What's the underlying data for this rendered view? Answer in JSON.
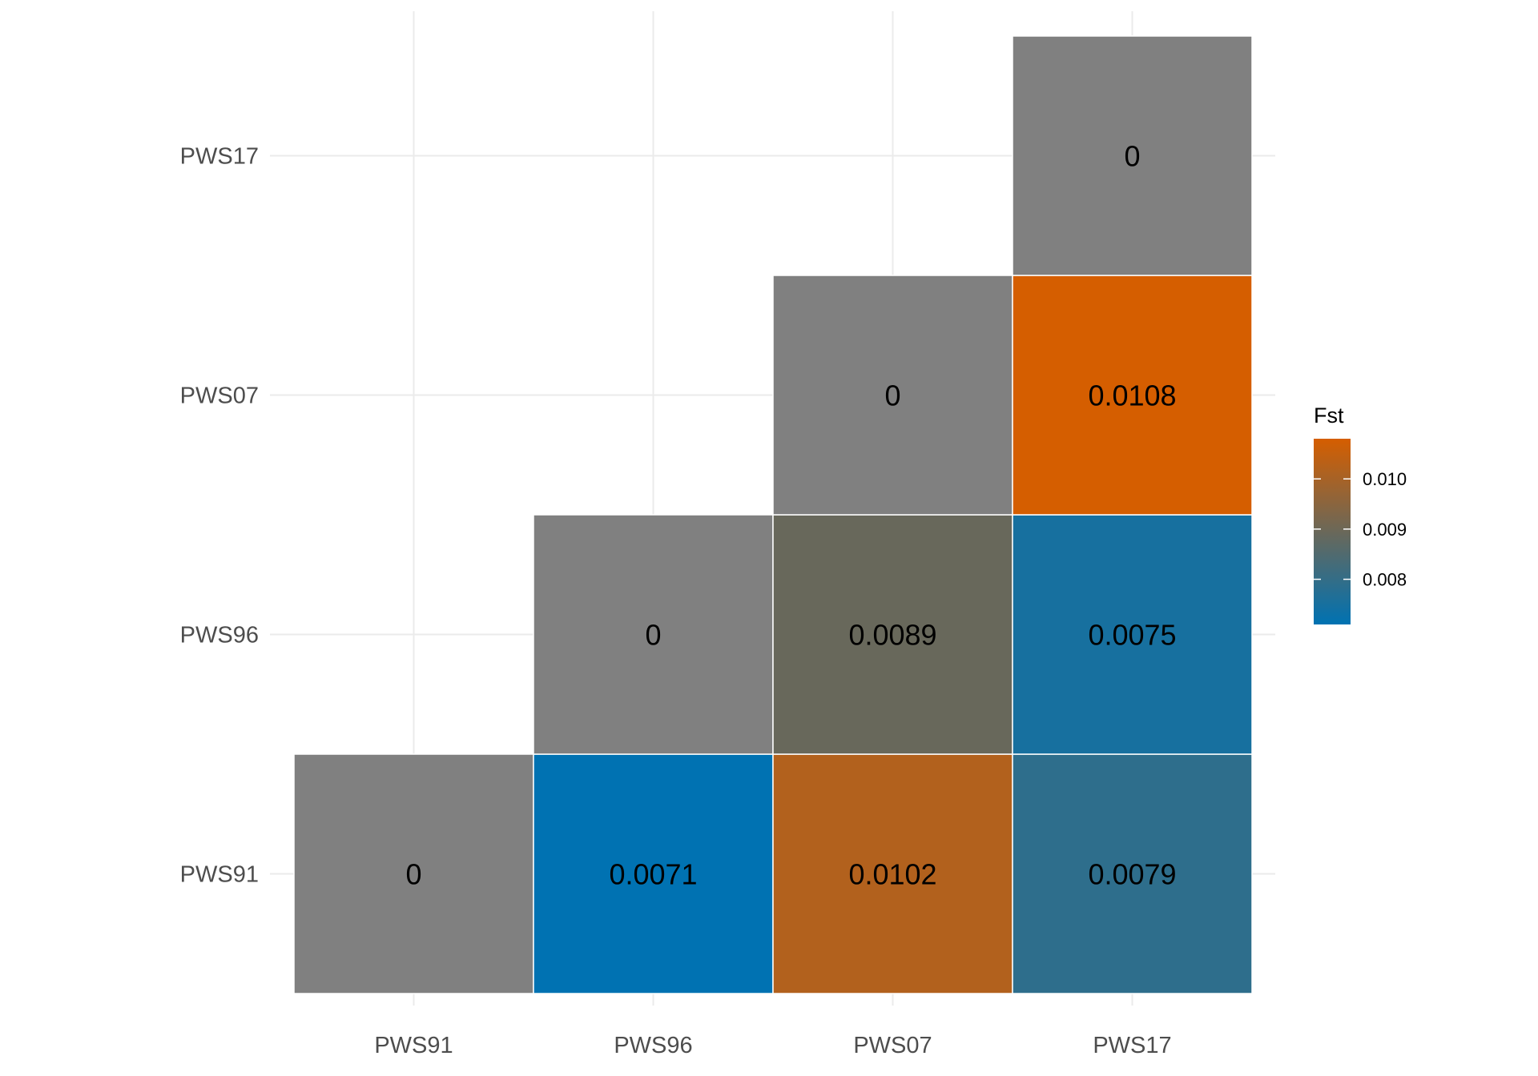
{
  "chart_data": {
    "type": "heatmap",
    "x_categories": [
      "PWS91",
      "PWS96",
      "PWS07",
      "PWS17"
    ],
    "y_categories": [
      "PWS91",
      "PWS96",
      "PWS07",
      "PWS17"
    ],
    "cells": [
      {
        "x": "PWS91",
        "y": "PWS91",
        "value": 0,
        "label": "0",
        "diagonal": true
      },
      {
        "x": "PWS96",
        "y": "PWS91",
        "value": 0.0071,
        "label": "0.0071"
      },
      {
        "x": "PWS07",
        "y": "PWS91",
        "value": 0.0102,
        "label": "0.0102"
      },
      {
        "x": "PWS17",
        "y": "PWS91",
        "value": 0.0079,
        "label": "0.0079"
      },
      {
        "x": "PWS96",
        "y": "PWS96",
        "value": 0,
        "label": "0",
        "diagonal": true
      },
      {
        "x": "PWS07",
        "y": "PWS96",
        "value": 0.0089,
        "label": "0.0089"
      },
      {
        "x": "PWS17",
        "y": "PWS96",
        "value": 0.0075,
        "label": "0.0075"
      },
      {
        "x": "PWS07",
        "y": "PWS07",
        "value": 0,
        "label": "0",
        "diagonal": true
      },
      {
        "x": "PWS17",
        "y": "PWS07",
        "value": 0.0108,
        "label": "0.0108"
      },
      {
        "x": "PWS17",
        "y": "PWS17",
        "value": 0,
        "label": "0",
        "diagonal": true
      }
    ],
    "legend": {
      "title": "Fst",
      "placement": "right",
      "breaks": [
        0.008,
        0.009,
        0.01
      ],
      "break_labels": [
        "0.008",
        "0.009",
        "0.010"
      ],
      "range": [
        0.0071,
        0.0108
      ],
      "low_color": "#0072B2",
      "high_color": "#D55E00"
    },
    "diagonal_color": "#808080",
    "grid": true
  }
}
